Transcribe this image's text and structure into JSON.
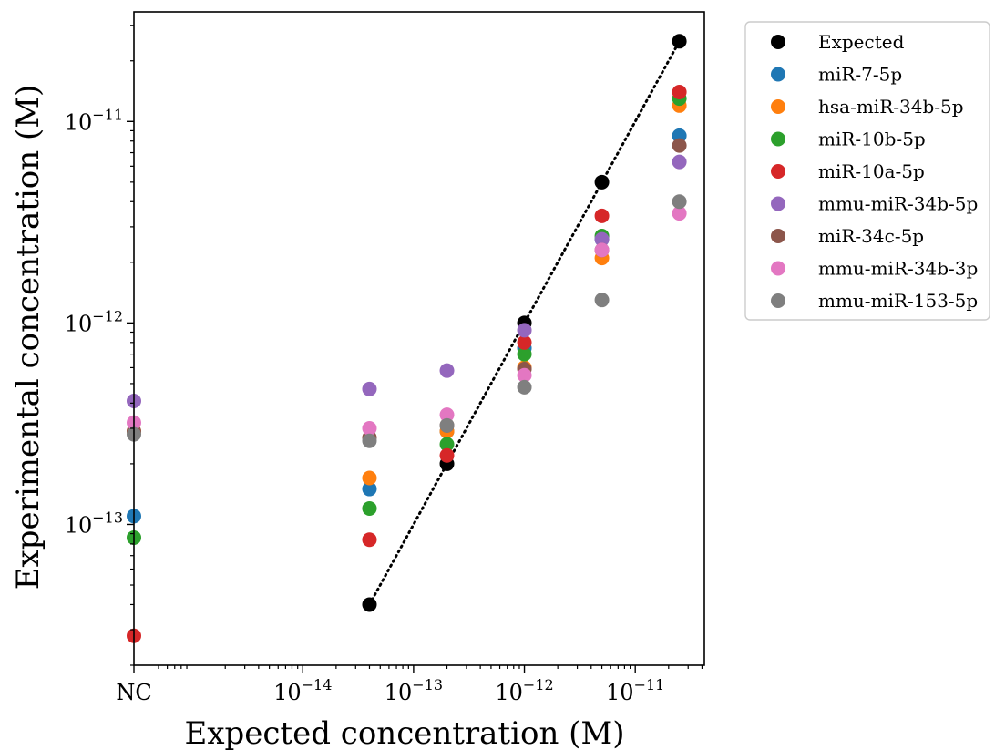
{
  "chart_data": {
    "type": "scatter",
    "xlabel": "Expected concentration (M)",
    "ylabel": "Experimental concentration (M)",
    "x_scale": "log",
    "y_scale": "log",
    "xlim": [
      3e-16,
      4.2e-11
    ],
    "ylim": [
      2e-14,
      3.5e-11
    ],
    "x_ticks": [
      {
        "value": 3e-16,
        "base": "NC",
        "exp": ""
      },
      {
        "value": 1e-14,
        "base": "10",
        "exp": "−14"
      },
      {
        "value": 1e-13,
        "base": "10",
        "exp": "−13"
      },
      {
        "value": 1e-12,
        "base": "10",
        "exp": "−12"
      },
      {
        "value": 1e-11,
        "base": "10",
        "exp": "−11"
      }
    ],
    "y_ticks": [
      {
        "value": 1e-13,
        "base": "10",
        "exp": "−13"
      },
      {
        "value": 1e-12,
        "base": "10",
        "exp": "−12"
      },
      {
        "value": 1e-11,
        "base": "10",
        "exp": "−11"
      }
    ],
    "grid": false,
    "legend_position": "outside-top-right",
    "x": [
      "NC",
      4e-14,
      2e-13,
      1e-12,
      5e-12,
      2.5e-11
    ],
    "series": [
      {
        "name": "Expected",
        "color": "#000000",
        "marker": "circle",
        "values": [
          null,
          4e-14,
          2e-13,
          1e-12,
          5e-12,
          2.5e-11
        ]
      },
      {
        "name": "miR-7-5p",
        "color": "#1f77b4",
        "marker": "circle",
        "values": [
          1.1e-13,
          1.5e-13,
          2.9e-13,
          7.5e-13,
          2.6e-12,
          8.5e-12
        ]
      },
      {
        "name": "hsa-miR-34b-5p",
        "color": "#ff7f0e",
        "marker": "circle",
        "values": [
          2.9e-13,
          1.7e-13,
          2.9e-13,
          6e-13,
          2.1e-12,
          1.2e-11
        ]
      },
      {
        "name": "miR-10b-5p",
        "color": "#2ca02c",
        "marker": "circle",
        "values": [
          8.6e-14,
          1.2e-13,
          2.5e-13,
          7e-13,
          2.7e-12,
          1.3e-11
        ]
      },
      {
        "name": "miR-10a-5p",
        "color": "#d62728",
        "marker": "circle",
        "values": [
          2.8e-14,
          8.4e-14,
          2.2e-13,
          8e-13,
          3.4e-12,
          1.4e-11
        ]
      },
      {
        "name": "mmu-miR-34b-5p",
        "color": "#9467bd",
        "marker": "circle",
        "values": [
          4.1e-13,
          4.7e-13,
          5.8e-13,
          9.2e-13,
          2.6e-12,
          6.3e-12
        ]
      },
      {
        "name": "miR-34c-5p",
        "color": "#8c564b",
        "marker": "circle",
        "values": [
          2.9e-13,
          2.7e-13,
          3.1e-13,
          5.9e-13,
          2.3e-12,
          7.6e-12
        ]
      },
      {
        "name": "mmu-miR-34b-3p",
        "color": "#e377c2",
        "marker": "circle",
        "values": [
          3.2e-13,
          3e-13,
          3.5e-13,
          5.5e-13,
          2.3e-12,
          3.5e-12
        ]
      },
      {
        "name": "mmu-miR-153-5p",
        "color": "#7f7f7f",
        "marker": "circle",
        "values": [
          2.8e-13,
          2.6e-13,
          3.1e-13,
          4.8e-13,
          1.3e-12,
          4e-12
        ]
      }
    ],
    "reference_line": {
      "style": "dotted",
      "color": "#000000",
      "x": [
        4e-14,
        2.5e-11
      ],
      "y": [
        4e-14,
        2.5e-11
      ]
    }
  }
}
